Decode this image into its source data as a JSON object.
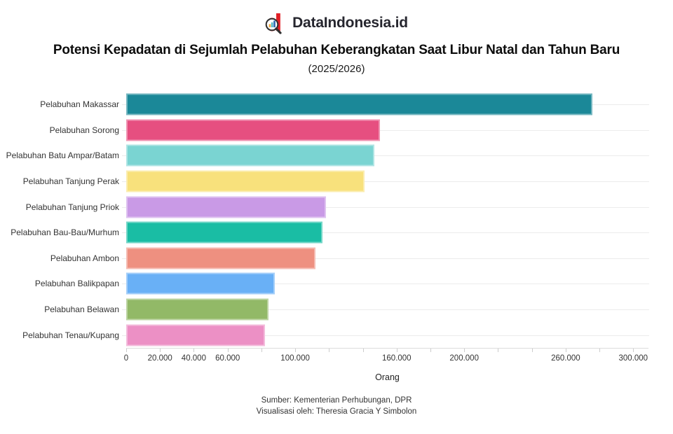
{
  "brand": {
    "name": "DataIndonesia.id",
    "logo_letter": "d",
    "logo_red": "#e11e25",
    "logo_dark": "#2f2f2f"
  },
  "chart_data": {
    "type": "bar",
    "orientation": "horizontal",
    "title": "Potensi Kepadatan di Sejumlah Pelabuhan Keberangkatan Saat Libur Natal dan Tahun Baru",
    "subtitle": "(2025/2026)",
    "xlabel": "Orang",
    "categories": [
      "Pelabuhan Makassar",
      "Pelabuhan Sorong",
      "Pelabuhan Batu Ampar/Batam",
      "Pelabuhan Tanjung Perak",
      "Pelabuhan Tanjung Priok",
      "Pelabuhan Bau-Bau/Murhum",
      "Pelabuhan Ambon",
      "Pelabuhan Balikpapan",
      "Pelabuhan Belawan",
      "Pelabuhan Tenau/Kupang"
    ],
    "values": [
      276000,
      150000,
      147000,
      141000,
      118000,
      116000,
      112000,
      88000,
      84000,
      82000
    ],
    "bar_colors": [
      "#1b8898",
      "#e64f80",
      "#7ad4d2",
      "#f8e17c",
      "#c99ae6",
      "#1abda4",
      "#ee9080",
      "#69b0f6",
      "#92b967",
      "#ec90c5"
    ],
    "xlim": [
      0,
      309000
    ],
    "minor_tick_interval": 20000,
    "x_tick_labels": [
      {
        "value": 0,
        "label": "0"
      },
      {
        "value": 20000,
        "label": "20.000"
      },
      {
        "value": 40000,
        "label": "40.000"
      },
      {
        "value": 60000,
        "label": "60.000"
      },
      {
        "value": 100000,
        "label": "100.000"
      },
      {
        "value": 160000,
        "label": "160.000"
      },
      {
        "value": 200000,
        "label": "200.000"
      },
      {
        "value": 260000,
        "label": "260.000"
      },
      {
        "value": 300000,
        "label": "300.000"
      }
    ],
    "grid": "horizontal-category-lines",
    "legend": "none"
  },
  "footer": {
    "source": "Sumber: Kementerian Perhubungan, DPR",
    "credit": "Visualisasi oleh: Theresia Gracia Y Simbolon"
  }
}
